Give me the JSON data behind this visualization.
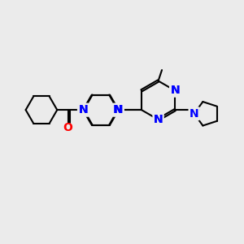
{
  "background_color": "#EBEBEB",
  "bond_color": "#000000",
  "n_color": "#0000FF",
  "o_color": "#FF0000",
  "line_width": 1.5,
  "font_size": 9,
  "figsize": [
    3.0,
    3.0
  ],
  "dpi": 100,
  "xlim": [
    0,
    10
  ],
  "ylim": [
    0,
    10
  ]
}
